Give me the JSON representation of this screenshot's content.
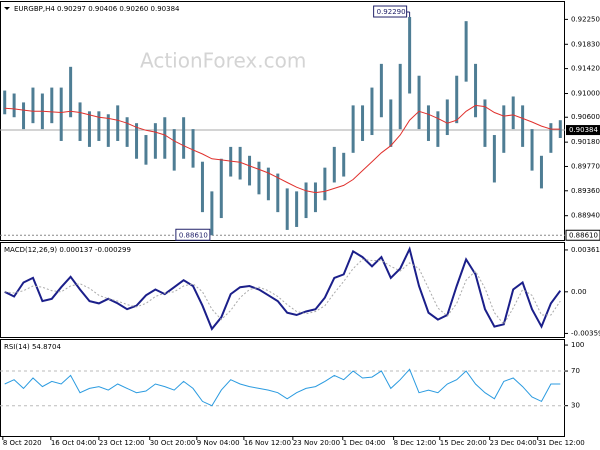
{
  "chart_data": [
    {
      "type": "range",
      "title": "EURGBP,H4  0.90297 0.90406 0.90260 0.90384",
      "watermark": "ActionForex.com",
      "color": "#4e7d94",
      "high": [
        0.9105,
        0.91,
        0.9085,
        0.911,
        0.91,
        0.911,
        0.911,
        0.9145,
        0.9085,
        0.907,
        0.907,
        0.9065,
        0.908,
        0.906,
        0.905,
        0.903,
        0.905,
        0.906,
        0.904,
        0.906,
        0.904,
        0.8985,
        0.8935,
        0.899,
        0.901,
        0.901,
        0.8995,
        0.8985,
        0.8975,
        0.8965,
        0.894,
        0.8935,
        0.895,
        0.895,
        0.8975,
        0.901,
        0.9,
        0.908,
        0.908,
        0.911,
        0.915,
        0.909,
        0.915,
        0.9229,
        0.913,
        0.908,
        0.907,
        0.909,
        0.913,
        0.9222,
        0.915,
        0.909,
        0.903,
        0.908,
        0.9095,
        0.908,
        0.904,
        0.8995,
        0.905,
        0.9055
      ],
      "low": [
        0.9065,
        0.906,
        0.904,
        0.905,
        0.904,
        0.905,
        0.902,
        0.906,
        0.902,
        0.901,
        0.902,
        0.901,
        0.902,
        0.901,
        0.899,
        0.898,
        0.899,
        0.899,
        0.897,
        0.899,
        0.8975,
        0.89,
        0.8861,
        0.889,
        0.896,
        0.8955,
        0.8945,
        0.893,
        0.892,
        0.89,
        0.887,
        0.8875,
        0.889,
        0.89,
        0.892,
        0.895,
        0.896,
        0.9,
        0.902,
        0.903,
        0.906,
        0.901,
        0.904,
        0.91,
        0.904,
        0.902,
        0.901,
        0.903,
        0.905,
        0.912,
        0.906,
        0.901,
        0.895,
        0.9,
        0.904,
        0.901,
        0.897,
        0.894,
        0.9,
        0.9025
      ],
      "series": [
        {
          "color": "#e0312d",
          "values": [
            0.9075,
            0.9074,
            0.9072,
            0.907,
            0.907,
            0.9069,
            0.9068,
            0.907,
            0.9068,
            0.9064,
            0.906,
            0.9058,
            0.9055,
            0.905,
            0.9043,
            0.9038,
            0.9035,
            0.903,
            0.902,
            0.9012,
            0.9005,
            0.8998,
            0.899,
            0.8988,
            0.8986,
            0.8984,
            0.8978,
            0.8972,
            0.8966,
            0.8958,
            0.895,
            0.8942,
            0.8936,
            0.8933,
            0.8935,
            0.894,
            0.8945,
            0.8955,
            0.897,
            0.8985,
            0.9,
            0.9012,
            0.903,
            0.9055,
            0.907,
            0.9065,
            0.9058,
            0.905,
            0.9055,
            0.907,
            0.908,
            0.9078,
            0.9068,
            0.9062,
            0.9064,
            0.9058,
            0.9052,
            0.9045,
            0.904,
            0.904
          ]
        }
      ],
      "ylim": [
        0.8853,
        0.9256
      ],
      "yticks": [
        {
          "value": 0.9225,
          "label": "0.92250"
        },
        {
          "value": 0.9183,
          "label": "0.91830"
        },
        {
          "value": 0.9142,
          "label": "0.91420"
        },
        {
          "value": 0.91,
          "label": "0.91000"
        },
        {
          "value": 0.906,
          "label": "0.90600"
        },
        {
          "value": 0.9018,
          "label": "0.90180"
        },
        {
          "value": 0.8977,
          "label": "0.89770"
        },
        {
          "value": 0.8936,
          "label": "0.89360"
        },
        {
          "value": 0.8894,
          "label": "0.88940"
        }
      ],
      "high_mark": {
        "value": 0.9229,
        "label": "0.92290",
        "bar": 43
      },
      "low_mark": {
        "value": 0.8861,
        "label": "0.88610",
        "bar": 22
      },
      "price_line": {
        "value": 0.90384,
        "label": "0.90384"
      }
    },
    {
      "type": "line",
      "title": "MACD(12,26,9) 0.000137 -0.000299",
      "series": [
        {
          "color": "#1b1f8a",
          "values": [
            0.0,
            -0.0004,
            0.0008,
            0.0012,
            -0.0008,
            -0.0006,
            0.0004,
            0.0013,
            0.0002,
            -0.0008,
            -0.001,
            -0.0006,
            -0.001,
            -0.0015,
            -0.0012,
            -0.0003,
            0.0002,
            -0.0002,
            0.0004,
            0.001,
            0.0005,
            -0.0012,
            -0.0032,
            -0.0022,
            -0.0002,
            0.0004,
            0.0005,
            0.0002,
            -0.0003,
            -0.0008,
            -0.0018,
            -0.002,
            -0.0017,
            -0.0015,
            -0.0005,
            0.0012,
            0.0015,
            0.0035,
            0.003,
            0.0022,
            0.003,
            0.0012,
            0.002,
            0.0037,
            0.0005,
            -0.0018,
            -0.0024,
            -0.002,
            0.0005,
            0.0028,
            0.0015,
            -0.0015,
            -0.003,
            -0.0028,
            0.0002,
            0.0008,
            -0.0015,
            -0.003,
            -0.001,
            0.0001
          ]
        },
        {
          "color": "#aaaaaa",
          "values": [
            0.0,
            -0.0001,
            0.0001,
            0.0005,
            0.0004,
            0.0001,
            0.0,
            0.0005,
            0.0007,
            0.0003,
            -0.0003,
            -0.0006,
            -0.0008,
            -0.0011,
            -0.0013,
            -0.001,
            -0.0004,
            -0.0001,
            0.0,
            0.0005,
            0.0007,
            0.0,
            -0.0015,
            -0.0024,
            -0.0016,
            -0.0005,
            0.0002,
            0.0004,
            0.0001,
            -0.0004,
            -0.0011,
            -0.0017,
            -0.0019,
            -0.0017,
            -0.0012,
            -0.0001,
            0.0009,
            0.002,
            0.0028,
            0.0027,
            0.0027,
            0.0022,
            0.0018,
            0.0025,
            0.002,
            0.0003,
            -0.0014,
            -0.0021,
            -0.001,
            0.001,
            0.0018,
            0.0003,
            -0.0018,
            -0.0028,
            -0.0014,
            0.0002,
            -0.0003,
            -0.002,
            -0.002,
            -0.0008
          ]
        }
      ],
      "ylim": [
        -0.0039,
        0.0043
      ],
      "yticks": [
        0.003615,
        {
          "value": 0,
          "label": "0.00"
        },
        -0.003592
      ]
    },
    {
      "type": "line",
      "title": "RSI(14) 54.8704",
      "series": [
        {
          "color": "#2b9be0",
          "values": [
            55,
            60,
            50,
            62,
            52,
            58,
            55,
            65,
            45,
            50,
            52,
            48,
            55,
            50,
            45,
            47,
            55,
            52,
            48,
            58,
            50,
            35,
            30,
            48,
            60,
            55,
            52,
            50,
            48,
            45,
            38,
            45,
            50,
            52,
            58,
            65,
            60,
            70,
            62,
            63,
            70,
            50,
            60,
            72,
            45,
            48,
            45,
            55,
            60,
            70,
            55,
            45,
            38,
            58,
            62,
            52,
            40,
            35,
            55,
            55
          ]
        }
      ],
      "ylim": [
        -5,
        107
      ],
      "yticks": [
        100,
        70,
        30
      ],
      "levels": [
        70,
        30
      ],
      "xlim": [
        0,
        60
      ],
      "xticks": [
        {
          "value": 0.3,
          "label": "8 Oct 2020"
        },
        {
          "value": 5.4,
          "label": "16 Oct 04:00"
        },
        {
          "value": 10.5,
          "label": "23 Oct 12:00"
        },
        {
          "value": 15.9,
          "label": "30 Oct 20:00"
        },
        {
          "value": 20.9,
          "label": "9 Nov 04:00"
        },
        {
          "value": 25.9,
          "label": "16 Nov 12:00"
        },
        {
          "value": 31.1,
          "label": "23 Nov 20:00"
        },
        {
          "value": 36.4,
          "label": "1 Dec 04:00"
        },
        {
          "value": 41.8,
          "label": "8 Dec 12:00"
        },
        {
          "value": 46.7,
          "label": "15 Dec 20:00"
        },
        {
          "value": 52,
          "label": "23 Dec 04:00"
        },
        {
          "value": 57.1,
          "label": "31 Dec 12:00"
        }
      ]
    }
  ]
}
